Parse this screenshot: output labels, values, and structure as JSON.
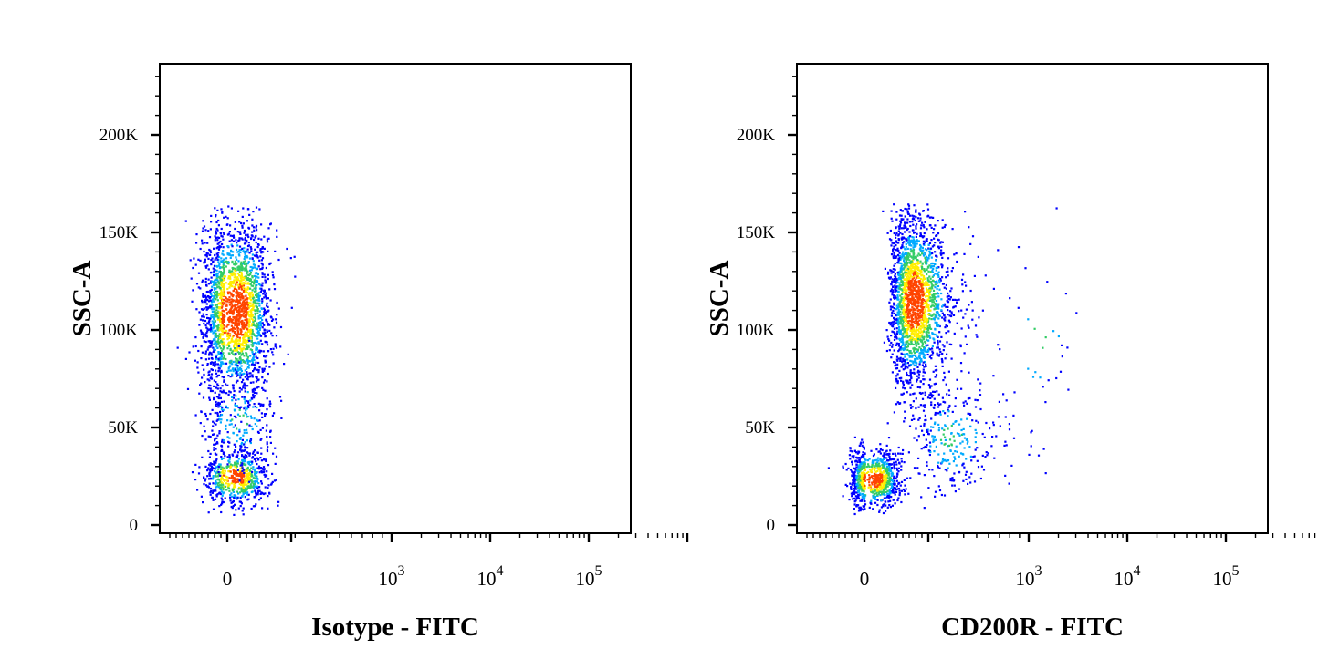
{
  "chart_data": [
    {
      "type": "scatter",
      "xlabel": "Isotype - FITC",
      "ylabel": "SSC-A",
      "x_scale": "biexponential",
      "y_ticks": [
        "0",
        "50K",
        "100K",
        "150K",
        "200K"
      ],
      "x_ticks": [
        "0",
        "10^3",
        "10^4",
        "10^5"
      ],
      "ylim": [
        0,
        235000
      ],
      "density_colors": [
        "#0000ff",
        "#00aaff",
        "#33cc66",
        "#ffee00",
        "#ff4400"
      ],
      "populations": [
        {
          "x": 5,
          "y": 110000,
          "sx": 12,
          "sy": 22000,
          "count": 2200
        },
        {
          "x": 5,
          "y": 25000,
          "sx": 10,
          "sy": 7000,
          "count": 650
        },
        {
          "x": 10,
          "y": 55000,
          "sx": 15,
          "sy": 15000,
          "count": 250
        }
      ]
    },
    {
      "type": "scatter",
      "xlabel": "CD200R - FITC",
      "ylabel": "SSC-A",
      "x_scale": "biexponential",
      "y_ticks": [
        "0",
        "50K",
        "100K",
        "150K",
        "200K"
      ],
      "x_ticks": [
        "0",
        "10^3",
        "10^4",
        "10^5"
      ],
      "ylim": [
        0,
        235000
      ],
      "density_colors": [
        "#0000ff",
        "#00aaff",
        "#33cc66",
        "#ffee00",
        "#ff4400"
      ],
      "populations": [
        {
          "x": 110,
          "y": 115000,
          "sx": 45,
          "sy": 22000,
          "count": 2100
        },
        {
          "x": 5,
          "y": 24000,
          "sx": 25,
          "sy": 7500,
          "count": 900
        },
        {
          "x": 300,
          "y": 45000,
          "sx": 200,
          "sy": 15000,
          "count": 300
        },
        {
          "x": 1200,
          "y": 95000,
          "sx": 500,
          "sy": 25000,
          "count": 40
        }
      ]
    }
  ]
}
